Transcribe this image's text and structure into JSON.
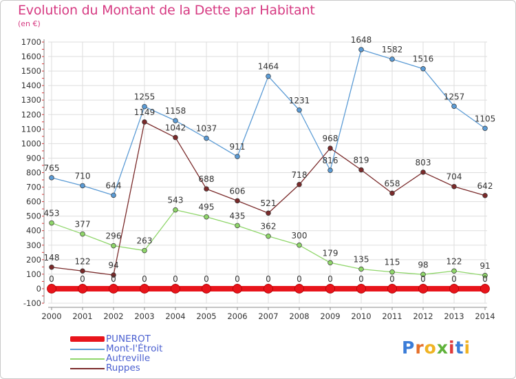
{
  "header": {
    "title": "Evolution du Montant de la Dette par Habitant",
    "subtitle": "(en €)"
  },
  "colors": {
    "title": "#d63a82",
    "legend_text": "#4a5fd0",
    "axis_text": "#333333",
    "grid": "#dddddd",
    "frame": "#c9c9c9"
  },
  "logo": {
    "text": "Proxiti",
    "letter_colors": [
      "#3b7dd8",
      "#e5702a",
      "#f0b323",
      "#5fb23a",
      "#e03a3a",
      "#3b7dd8",
      "#f0b323"
    ]
  },
  "chart_data": {
    "type": "line",
    "title": "Evolution du Montant de la Dette par Habitant",
    "subtitle": "(en €)",
    "x": [
      "2000",
      "2001",
      "2002",
      "2003",
      "2004",
      "2005",
      "2006",
      "2007",
      "2008",
      "2009",
      "2010",
      "2011",
      "2012",
      "2013",
      "2014"
    ],
    "ylim": [
      -100,
      1700
    ],
    "yticks": [
      -100,
      0,
      100,
      200,
      300,
      400,
      500,
      600,
      700,
      800,
      900,
      1000,
      1100,
      1200,
      1300,
      1400,
      1500,
      1600,
      1700
    ],
    "grid": true,
    "legend_position": "bottom-left",
    "series": [
      {
        "name": "PUNEROT",
        "color": "#e8141b",
        "values": [
          0,
          0,
          0,
          0,
          0,
          0,
          0,
          0,
          0,
          0,
          0,
          0,
          0,
          0,
          0
        ]
      },
      {
        "name": "Mont-l'Étroit",
        "color": "#5b9bd5",
        "values": [
          765,
          710,
          644,
          1255,
          1158,
          1037,
          911,
          1464,
          1231,
          816,
          1648,
          1582,
          1516,
          1257,
          1105
        ]
      },
      {
        "name": "Autreville",
        "color": "#8fd66a",
        "values": [
          453,
          377,
          296,
          263,
          543,
          495,
          435,
          362,
          300,
          179,
          135,
          115,
          98,
          122,
          91
        ]
      },
      {
        "name": "Ruppes",
        "color": "#7a2a2a",
        "values": [
          148,
          122,
          94,
          1149,
          1042,
          688,
          606,
          521,
          718,
          968,
          819,
          658,
          803,
          704,
          642
        ]
      }
    ]
  }
}
